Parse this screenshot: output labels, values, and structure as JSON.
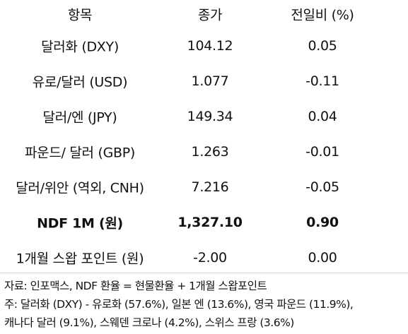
{
  "table": {
    "headers": [
      "항목",
      "종가",
      "전일비 (%)"
    ],
    "rows": [
      {
        "item": "달러화 (DXY)",
        "close": "104.12",
        "change": "0.05"
      },
      {
        "item": "유로/달러 (USD)",
        "close": "1.077",
        "change": "-0.11"
      },
      {
        "item": "달러/엔 (JPY)",
        "close": "149.34",
        "change": "0.04"
      },
      {
        "item": "파운드/ 달러 (GBP)",
        "close": "1.263",
        "change": "-0.01"
      },
      {
        "item": "달러/위안 (역외, CNH)",
        "close": "7.216",
        "change": "-0.05"
      },
      {
        "item": "NDF 1M (원)",
        "close": "1,327.10",
        "change": "0.90"
      },
      {
        "item": "1개월 스왑 포인트 (원)",
        "close": "-2.00",
        "change": "0.00"
      }
    ]
  },
  "notes": {
    "source": "자료: 인포맥스, NDF 환율 = 현물환율 + 1개월 스왑포인트",
    "note_line1": "주: 달러화 (DXY) - 유로화 (57.6%), 일본 엔 (13.6%), 영국 파운드 (11.9%),",
    "note_line2": "캐나다 달러 (9.1%), 스웨덴 크로나 (4.2%), 스위스 프랑 (3.6%)"
  }
}
